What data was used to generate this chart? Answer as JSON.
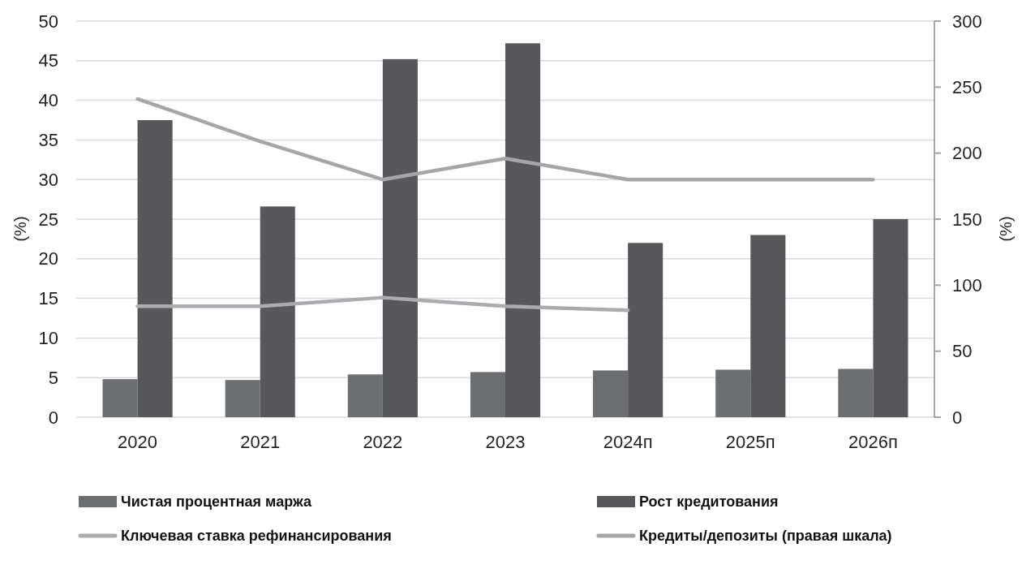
{
  "chart_data": {
    "type": "bar",
    "categories": [
      "2020",
      "2021",
      "2022",
      "2023",
      "2024п",
      "2025п",
      "2026п"
    ],
    "series": [
      {
        "name": "Чистая процентная маржа",
        "color": "#6d6e72",
        "values": [
          4.8,
          4.7,
          5.4,
          5.7,
          5.9,
          6.0,
          6.1
        ]
      },
      {
        "name": "Рост кредитования",
        "color": "#58585a",
        "values": [
          37.5,
          26.6,
          45.2,
          47.2,
          22.0,
          23.0,
          25.0
        ]
      },
      {
        "name": "Ключевая ставка рефинансирования",
        "type": "line",
        "color": "#abacaf",
        "values": [
          14.0,
          14.0,
          15.1,
          14.0,
          13.5,
          null,
          null
        ]
      },
      {
        "name": "Кредиты/депозиты (правая шкала)",
        "type": "line",
        "axis": "y2",
        "color": "#a5a6aa",
        "values": [
          241,
          209,
          180,
          196,
          180,
          180,
          180
        ]
      }
    ],
    "ylabel": "(%)",
    "y2label": "(%)",
    "ylim": [
      0,
      50
    ],
    "yticks": [
      0,
      5,
      10,
      15,
      20,
      25,
      30,
      35,
      40,
      45,
      50
    ],
    "y2lim": [
      0,
      300
    ],
    "y2ticks": [
      0,
      50,
      100,
      150,
      200,
      250,
      300
    ],
    "grid": "y",
    "legend": "bottom"
  }
}
